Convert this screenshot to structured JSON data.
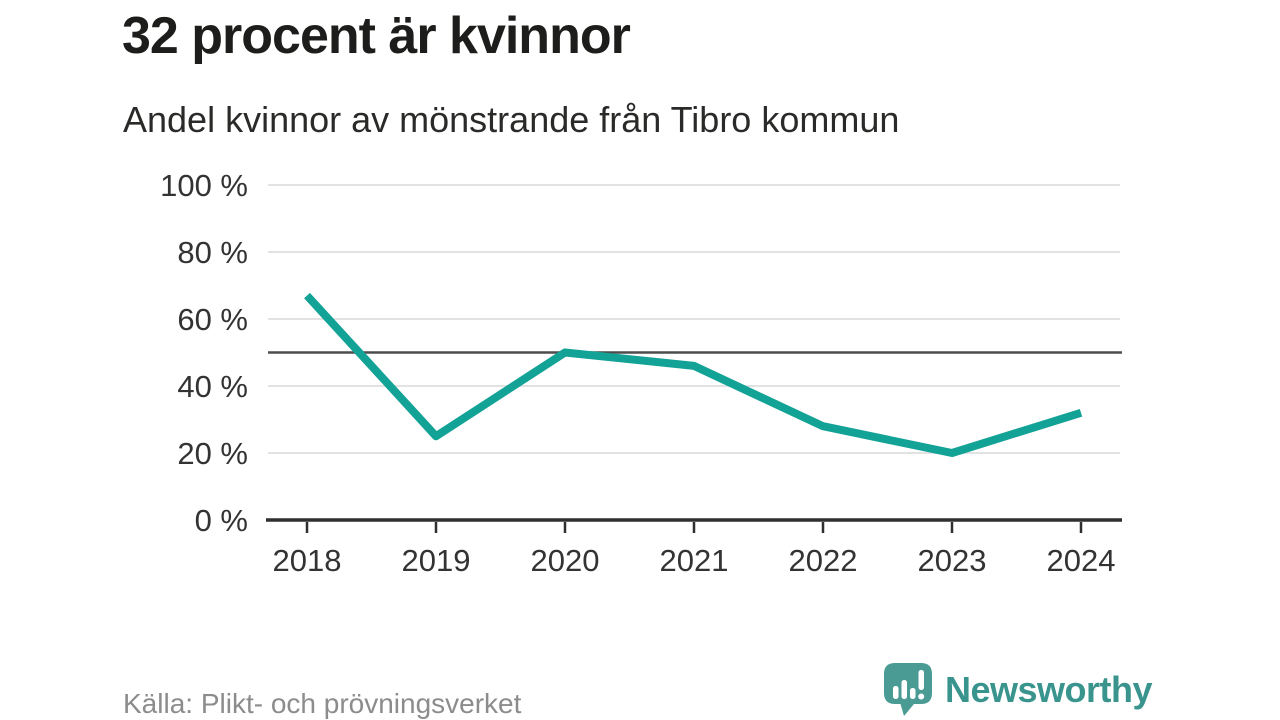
{
  "header": {
    "title": "32 procent är kvinnor",
    "subtitle": "Andel kvinnor av mönstrande från Tibro kommun"
  },
  "chart_data": {
    "type": "line",
    "title": "32 procent är kvinnor",
    "subtitle": "Andel kvinnor av mönstrande från Tibro kommun",
    "x": [
      2018,
      2019,
      2020,
      2021,
      2022,
      2023,
      2024
    ],
    "series": [
      {
        "name": "Andel kvinnor av mönstrande",
        "values": [
          67,
          25,
          50,
          46,
          28,
          20,
          32
        ]
      }
    ],
    "ylim": [
      0,
      100
    ],
    "yticks": [
      0,
      20,
      40,
      60,
      80,
      100
    ],
    "ytick_suffix": " %",
    "reference_line": 50,
    "grid": true,
    "legend": "none",
    "colors": {
      "line": "#13a296",
      "reference_line": "#4d4d4d",
      "grid": "#e2e2e2",
      "axis": "#2f2f2f",
      "tick_label": "#333333"
    }
  },
  "footer": {
    "source": "Källa: Plikt- och prövningsverket",
    "brand": "Newsworthy"
  },
  "icons": {
    "brand_logo": "newsworthy-speech-bubble-barchart-icon"
  },
  "brand_colors": {
    "bubble": "#4b9b95",
    "wordmark": "#3a948e"
  }
}
